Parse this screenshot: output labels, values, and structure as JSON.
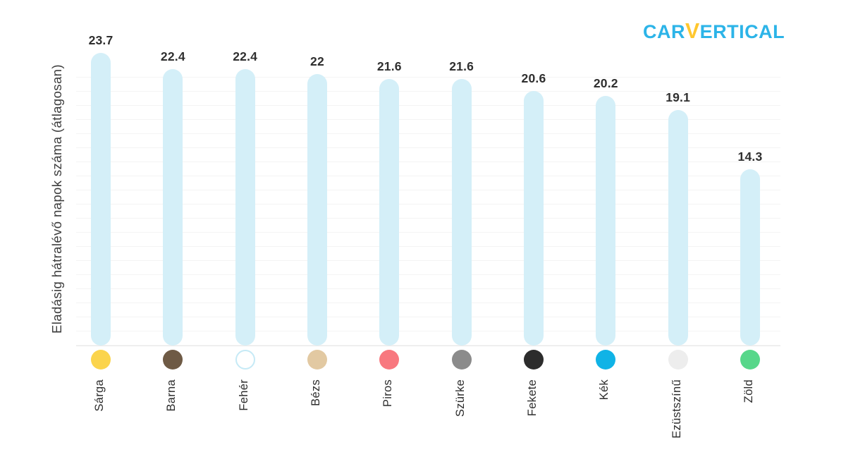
{
  "logo": {
    "part1": "CAR",
    "part2": "V",
    "part3": "ERTICAL",
    "primary_color": "#2cb4e8",
    "accent_color": "#ffc72e"
  },
  "chart_data": {
    "type": "bar",
    "title": "",
    "xlabel": "",
    "ylabel": "Eladásig hátralévő napok száma (átlagosan)",
    "categories": [
      "Sárga",
      "Barna",
      "Fehér",
      "Bézs",
      "Piros",
      "Szürke",
      "Fekete",
      "Kék",
      "Ezüstszínű",
      "Zöld"
    ],
    "values": [
      23.7,
      22.4,
      22.4,
      22,
      21.6,
      21.6,
      20.6,
      20.2,
      19.1,
      14.3
    ],
    "value_labels": [
      "23.7",
      "22.4",
      "22.4",
      "22",
      "21.6",
      "21.6",
      "20.6",
      "20.2",
      "19.1",
      "14.3"
    ],
    "ylim": [
      0,
      24
    ],
    "grid": "horizontal-faint",
    "legend": "none",
    "bar_color": "#d4eff8",
    "dot_colors": [
      "#fbd44c",
      "#6e5a45",
      "#ffffff",
      "#e2c9a2",
      "#f8787f",
      "#8b8b8b",
      "#2c2c2c",
      "#10b3e6",
      "#ededed",
      "#57d78a"
    ],
    "dot_border_colors": [
      "",
      "",
      "#c6eaf6",
      "",
      "",
      "",
      "",
      "",
      "",
      ""
    ]
  }
}
